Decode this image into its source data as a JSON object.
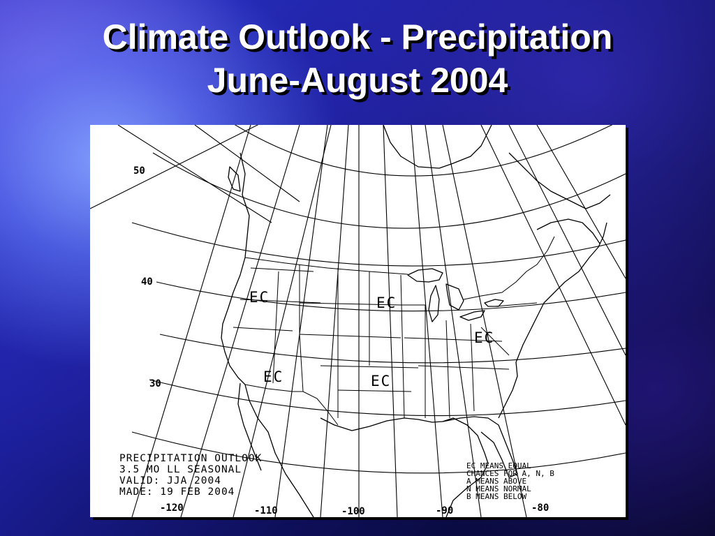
{
  "slide": {
    "title_line1": "Climate Outlook - Precipitation",
    "title_line2": "June-August 2004"
  },
  "map": {
    "latitude_labels": [
      "50",
      "40",
      "30"
    ],
    "longitude_labels": [
      "-120",
      "-110",
      "-100",
      "-90",
      "-80"
    ],
    "regions": [
      {
        "label": "EC",
        "area": "northwest"
      },
      {
        "label": "EC",
        "area": "northern-plains"
      },
      {
        "label": "EC",
        "area": "east"
      },
      {
        "label": "EC",
        "area": "southwest"
      },
      {
        "label": "EC",
        "area": "southern-plains"
      }
    ],
    "info_box": {
      "line1": "PRECIPITATION OUTLOOK",
      "line2": "3.5 MO LL SEASONAL",
      "line3": "VALID: JJA 2004",
      "line4": "MADE: 19 FEB 2004"
    },
    "legend": {
      "line1": "EC MEANS EQUAL",
      "line2": "CHANCES FOR A, N, B",
      "line3": "A MEANS ABOVE",
      "line4": "N MEANS NORMAL",
      "line5": "B MEANS BELOW"
    },
    "line_color": "#000000",
    "background_color": "#ffffff"
  }
}
